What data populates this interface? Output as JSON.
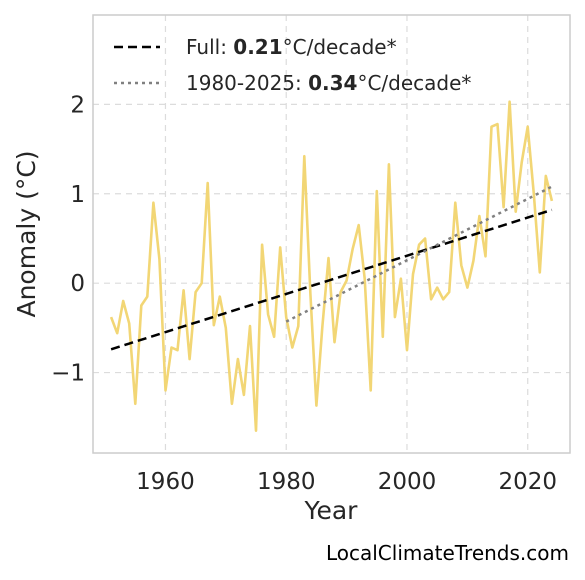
{
  "chart_data": {
    "type": "line",
    "xlabel": "Year",
    "ylabel": "Anomaly (°C)",
    "xlim": [
      1948,
      2027
    ],
    "ylim": [
      -1.9,
      3.0
    ],
    "x_ticks": [
      1960,
      1980,
      2000,
      2020
    ],
    "x_tick_labels": [
      "1960",
      "1980",
      "2000",
      "2020"
    ],
    "y_ticks": [
      2,
      1,
      0,
      -1
    ],
    "y_tick_labels": [
      "2",
      "1",
      "0",
      "−1"
    ],
    "grid": true,
    "legend_placement": "top-left",
    "series": [
      {
        "type": "line",
        "color": "#f2d675",
        "x": [
          1951,
          1952,
          1953,
          1954,
          1955,
          1956,
          1957,
          1958,
          1959,
          1960,
          1961,
          1962,
          1963,
          1964,
          1965,
          1966,
          1967,
          1968,
          1969,
          1970,
          1971,
          1972,
          1973,
          1974,
          1975,
          1976,
          1977,
          1978,
          1979,
          1980,
          1981,
          1982,
          1983,
          1984,
          1985,
          1986,
          1987,
          1988,
          1989,
          1990,
          1991,
          1992,
          1993,
          1994,
          1995,
          1996,
          1997,
          1998,
          1999,
          2000,
          2001,
          2002,
          2003,
          2004,
          2005,
          2006,
          2007,
          2008,
          2009,
          2010,
          2011,
          2012,
          2013,
          2014,
          2015,
          2016,
          2017,
          2018,
          2019,
          2020,
          2021,
          2022,
          2023,
          2024
        ],
        "y": [
          -0.38,
          -0.56,
          -0.2,
          -0.45,
          -1.35,
          -0.25,
          -0.15,
          0.9,
          0.27,
          -1.2,
          -0.72,
          -0.75,
          -0.08,
          -0.85,
          -0.1,
          0.0,
          1.12,
          -0.47,
          -0.15,
          -0.5,
          -1.35,
          -0.85,
          -1.25,
          -0.48,
          -1.65,
          0.43,
          -0.35,
          -0.6,
          0.4,
          -0.38,
          -0.72,
          -0.48,
          1.42,
          -0.12,
          -1.37,
          -0.48,
          0.28,
          -0.66,
          -0.1,
          0.03,
          0.38,
          0.65,
          0.05,
          -1.2,
          1.03,
          -0.6,
          1.33,
          -0.38,
          0.05,
          -0.75,
          0.1,
          0.43,
          0.5,
          -0.18,
          -0.05,
          -0.18,
          -0.1,
          0.9,
          0.2,
          -0.05,
          0.25,
          0.75,
          0.3,
          1.75,
          1.78,
          0.85,
          2.03,
          0.8,
          1.35,
          1.75,
          1.0,
          0.12,
          1.2,
          0.92
        ]
      },
      {
        "name": "Full",
        "type": "trend",
        "style": "dashed",
        "color": "#000000",
        "x": [
          1951,
          2024
        ],
        "y": [
          -0.74,
          0.82
        ]
      },
      {
        "name": "1980-2025",
        "type": "trend",
        "style": "dotted",
        "color": "#808080",
        "x": [
          1980,
          2024
        ],
        "y": [
          -0.43,
          1.08
        ]
      }
    ],
    "legend": [
      {
        "prefix": "Full: ",
        "bold": "0.21",
        "suffix": "°C/decade*",
        "style": "dashed",
        "color": "#000000"
      },
      {
        "prefix": "1980-2025: ",
        "bold": "0.34",
        "suffix": "°C/decade*",
        "style": "dotted",
        "color": "#808080"
      }
    ]
  },
  "credit": "LocalClimateTrends.com"
}
